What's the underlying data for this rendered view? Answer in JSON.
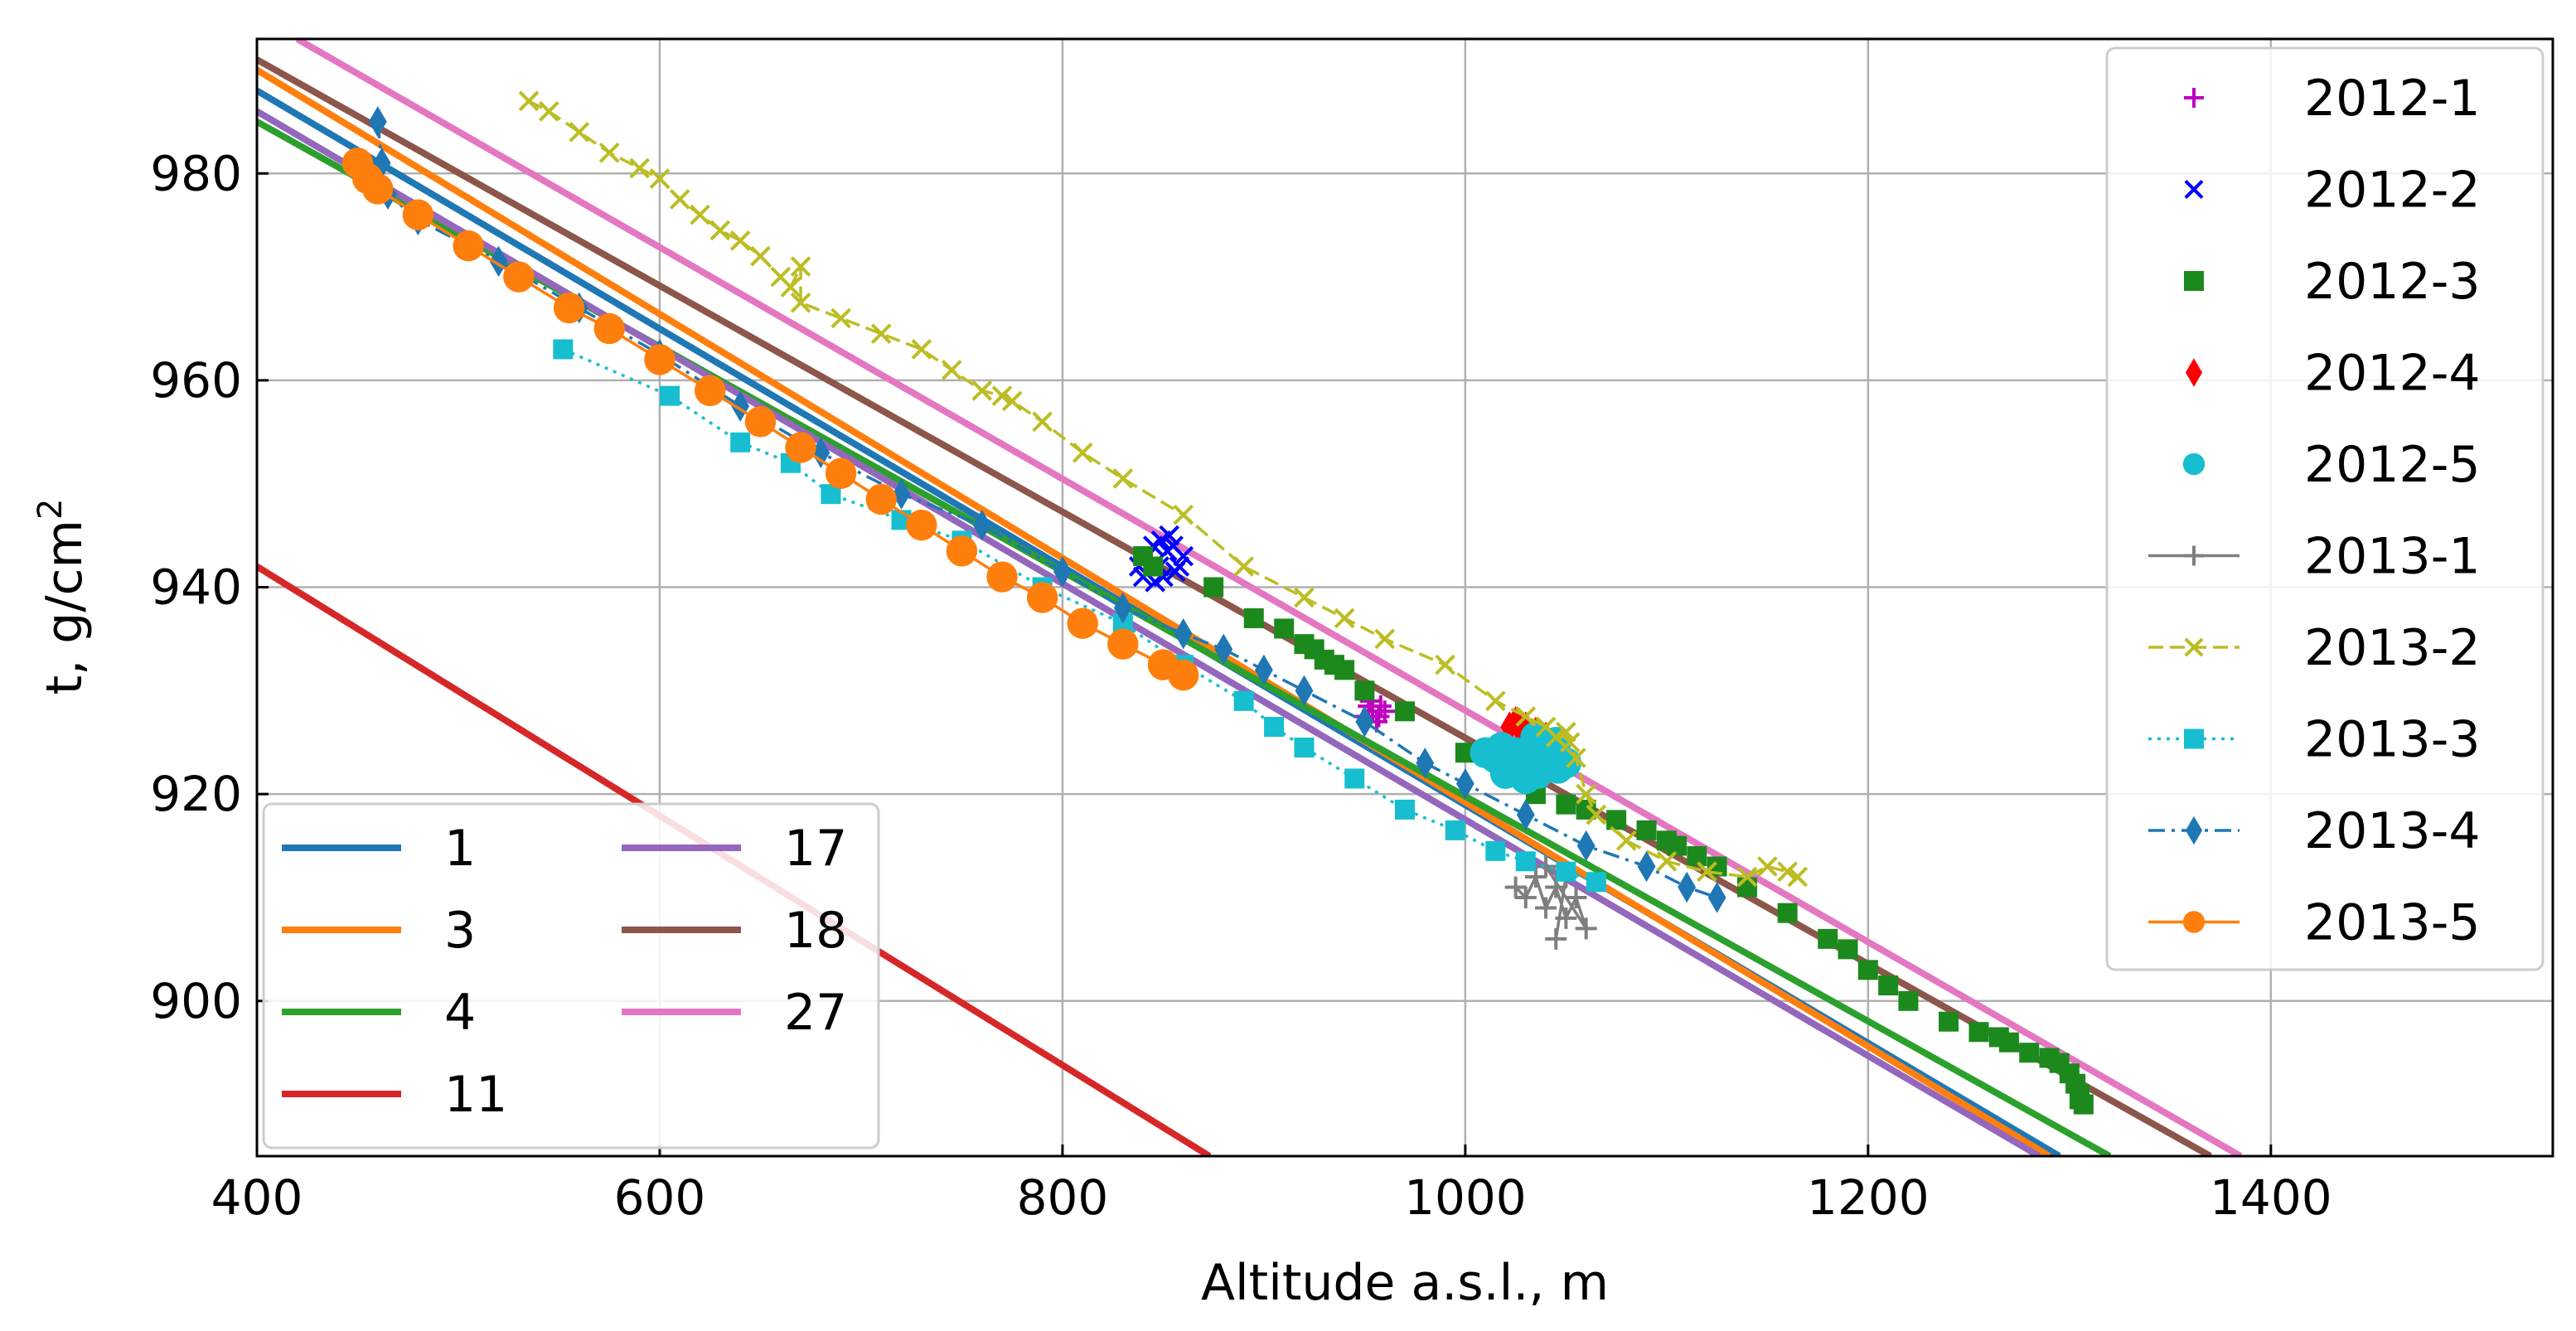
{
  "chart_data": {
    "type": "line",
    "title": "",
    "xlabel": "Altitude a.s.l., m",
    "ylabel_main": "t, g/cm",
    "ylabel_sup": "2",
    "xlim": [
      400,
      1540
    ],
    "ylim": [
      885,
      993
    ],
    "xticks": [
      400,
      600,
      800,
      1000,
      1200,
      1400
    ],
    "yticks": [
      900,
      920,
      940,
      960,
      980
    ],
    "grid": true,
    "fit_lines": [
      {
        "name": "1",
        "color": "#1f77b4",
        "x": [
          400,
          1295
        ],
        "y": [
          988,
          885
        ]
      },
      {
        "name": "3",
        "color": "#ff7f0e",
        "x": [
          400,
          1290
        ],
        "y": [
          990,
          885
        ]
      },
      {
        "name": "4",
        "color": "#2ca02c",
        "x": [
          400,
          1320
        ],
        "y": [
          985,
          885
        ]
      },
      {
        "name": "11",
        "color": "#d62728",
        "x": [
          400,
          873
        ],
        "y": [
          942,
          885
        ]
      },
      {
        "name": "17",
        "color": "#9467bd",
        "x": [
          400,
          1285
        ],
        "y": [
          986,
          885
        ]
      },
      {
        "name": "18",
        "color": "#8c564b",
        "x": [
          400,
          1370
        ],
        "y": [
          991,
          885
        ]
      },
      {
        "name": "27",
        "color": "#e377c2",
        "x": [
          420,
          1385
        ],
        "y": [
          993,
          885
        ]
      }
    ],
    "series": [
      {
        "name": "2012-1",
        "color": "#bf00bf",
        "marker": "plus",
        "line": "none",
        "x": [
          950,
          952,
          954,
          956,
          958,
          960,
          953,
          957
        ],
        "y": [
          927.5,
          928.5,
          928,
          927,
          928.5,
          928,
          929,
          927.5
        ]
      },
      {
        "name": "2012-2",
        "color": "#0000ff",
        "marker": "x",
        "line": "none",
        "x": [
          838,
          842,
          845,
          848,
          850,
          852,
          855,
          858,
          860,
          846,
          853,
          840,
          849,
          856
        ],
        "y": [
          942,
          943,
          944,
          942,
          941,
          943.5,
          944,
          942,
          943,
          940.5,
          945,
          941,
          944.5,
          941.5
        ]
      },
      {
        "name": "2012-3",
        "color": "#1c891c",
        "marker": "square",
        "line": "none",
        "x": [
          840,
          845,
          875,
          895,
          910,
          920,
          925,
          930,
          935,
          940,
          950,
          970,
          1000,
          1035,
          1050,
          1060,
          1075,
          1090,
          1100,
          1105,
          1115,
          1125,
          1140,
          1160,
          1180,
          1190,
          1200,
          1210,
          1220,
          1240,
          1255,
          1265,
          1270,
          1280,
          1290,
          1295,
          1300,
          1303,
          1305,
          1305,
          1307
        ],
        "y": [
          943,
          942,
          940,
          937,
          936,
          934.5,
          934,
          933,
          932.5,
          932,
          930,
          928,
          924,
          920,
          919,
          918.5,
          917.5,
          916.5,
          915.5,
          915,
          914,
          913,
          911,
          908.5,
          906,
          905,
          903,
          901.5,
          900,
          898,
          897,
          896.5,
          896,
          895,
          894.5,
          894,
          893,
          892,
          891,
          890.5,
          890
        ]
      },
      {
        "name": "2012-4",
        "color": "#ff0000",
        "marker": "diamond",
        "line": "none",
        "x": [
          1022,
          1025,
          1028,
          1030,
          1035,
          1040
        ],
        "y": [
          926.5,
          927,
          926,
          926.5,
          926,
          925.5
        ]
      },
      {
        "name": "2012-5",
        "color": "#17becf",
        "marker": "circle",
        "line": "none",
        "x": [
          1010,
          1015,
          1018,
          1022,
          1025,
          1028,
          1030,
          1033,
          1036,
          1040,
          1043,
          1046,
          1050,
          1035,
          1045,
          1020,
          1030
        ],
        "y": [
          924,
          923.5,
          924.5,
          923,
          924,
          922.5,
          923.5,
          924,
          922,
          923,
          924.5,
          922.5,
          923,
          925.5,
          925,
          922,
          921.5
        ]
      },
      {
        "name": "2013-1",
        "color": "#7f7f7f",
        "marker": "plus",
        "line": "solid",
        "x": [
          1025,
          1030,
          1035,
          1040,
          1045,
          1050,
          1055,
          1060,
          1040,
          1050,
          1045
        ],
        "y": [
          911,
          910,
          912,
          909,
          911,
          908,
          910,
          907,
          913,
          912,
          906
        ]
      },
      {
        "name": "2013-2",
        "color": "#bcbd22",
        "marker": "x",
        "line": "dashed",
        "x": [
          535,
          545,
          560,
          575,
          590,
          600,
          610,
          620,
          630,
          640,
          650,
          660,
          665,
          670,
          670,
          690,
          710,
          730,
          745,
          760,
          770,
          775,
          790,
          810,
          830,
          860,
          890,
          920,
          940,
          960,
          990,
          1015,
          1030,
          1040,
          1045,
          1050,
          1052,
          1055,
          1060,
          1065,
          1080,
          1100,
          1120,
          1140,
          1150,
          1160,
          1165
        ],
        "y": [
          987,
          986,
          984,
          982,
          980.5,
          979.5,
          977.5,
          976,
          974.5,
          973.5,
          972,
          970,
          969,
          971,
          967.5,
          966,
          964.5,
          963,
          961,
          959,
          958.5,
          958,
          956,
          953,
          950.5,
          947,
          942,
          939,
          937,
          935,
          932.5,
          929,
          927.5,
          926.5,
          925.5,
          926,
          925,
          923.5,
          920,
          918,
          915.5,
          913.5,
          912.5,
          912,
          913,
          912.5,
          912
        ]
      },
      {
        "name": "2013-3",
        "color": "#17becf",
        "marker": "square",
        "line": "dotted",
        "x": [
          552,
          605,
          640,
          665,
          685,
          720,
          750,
          790,
          830,
          860,
          890,
          905,
          920,
          945,
          970,
          995,
          1015,
          1030,
          1050,
          1065
        ],
        "y": [
          963,
          958.5,
          954,
          952,
          949,
          946.5,
          944.5,
          940,
          936.5,
          932.5,
          929,
          926.5,
          924.5,
          921.5,
          918.5,
          916.5,
          914.5,
          913.5,
          912.5,
          911.5
        ]
      },
      {
        "name": "2013-4",
        "color": "#1f77b4",
        "marker": "diamond",
        "line": "dashdot",
        "x": [
          460,
          462,
          465,
          480,
          520,
          560,
          600,
          640,
          680,
          720,
          760,
          800,
          830,
          860,
          880,
          900,
          920,
          950,
          980,
          1000,
          1030,
          1060,
          1090,
          1110,
          1125
        ],
        "y": [
          985,
          981,
          978,
          975.5,
          971.5,
          967,
          962.5,
          957.5,
          953,
          949,
          946,
          941.5,
          938,
          935.5,
          934,
          932,
          930,
          927,
          923,
          921,
          918,
          915,
          913,
          911,
          910
        ]
      },
      {
        "name": "2013-5",
        "color": "#ff7f0e",
        "marker": "circle",
        "line": "solid",
        "x": [
          450,
          455,
          460,
          480,
          505,
          530,
          555,
          575,
          600,
          625,
          650,
          670,
          690,
          710,
          730,
          750,
          770,
          790,
          810,
          830,
          850,
          860
        ],
        "y": [
          981,
          979.5,
          978.5,
          976,
          973,
          970,
          967,
          965,
          962,
          959,
          956,
          953.5,
          951,
          948.5,
          946,
          943.5,
          941,
          939,
          936.5,
          934.5,
          932.5,
          931.5
        ]
      }
    ]
  }
}
